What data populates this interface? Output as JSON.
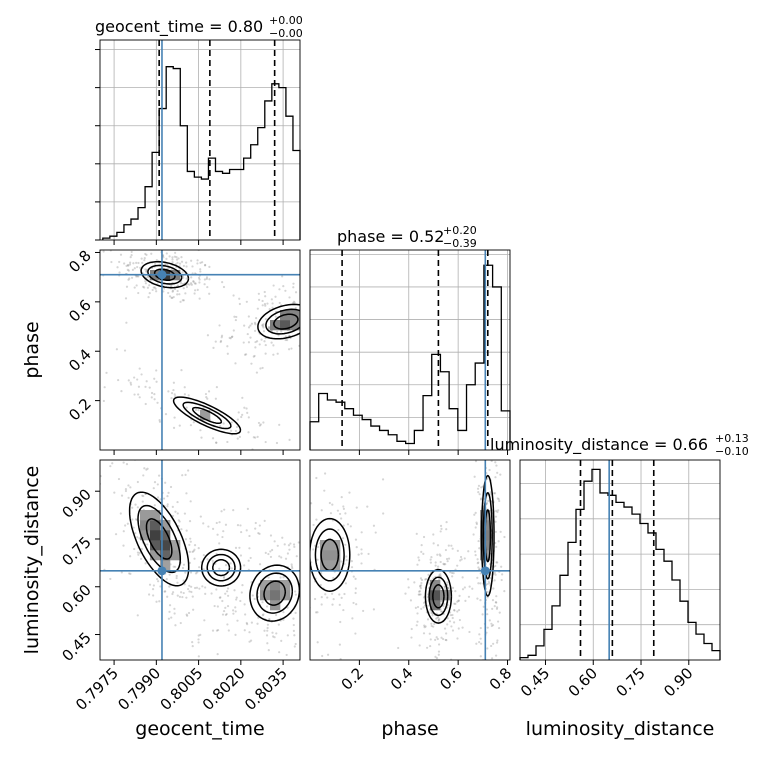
{
  "chart_data": {
    "type": "scatter",
    "subtype": "corner-plot",
    "parameters": [
      "geocent_time",
      "phase",
      "luminosity_distance"
    ],
    "ranges": {
      "geocent_time": [
        0.797,
        0.8041
      ],
      "phase": [
        0.0,
        0.81
      ],
      "luminosity_distance": [
        0.37,
        0.998
      ]
    },
    "truths": {
      "geocent_time": 0.7992,
      "phase": 0.71,
      "luminosity_distance": 0.65
    },
    "titles": [
      {
        "param": "geocent_time",
        "text": "geocent_time = 0.80",
        "sup": "+0.00",
        "sub": "−0.00"
      },
      {
        "param": "phase",
        "text": "phase = 0.52",
        "sup": "+0.20",
        "sub": "−0.39"
      },
      {
        "param": "luminosity_distance",
        "text": "luminosity_distance = 0.66",
        "sup": "+0.13",
        "sub": "−0.10"
      }
    ],
    "quantiles": {
      "geocent_time": [
        0.7991,
        0.8009,
        0.8032
      ],
      "phase": [
        0.13,
        0.52,
        0.72
      ],
      "luminosity_distance": [
        0.56,
        0.66,
        0.79
      ]
    },
    "ticks": {
      "geocent_time": [
        "0.7975",
        "0.7990",
        "0.8005",
        "0.8020",
        "0.8035"
      ],
      "phase": [
        "0.2",
        "0.4",
        "0.6",
        "0.8"
      ],
      "luminosity_distance": [
        "0.45",
        "0.60",
        "0.75",
        "0.90"
      ]
    },
    "axis_labels": {
      "x": [
        "geocent_time",
        "phase",
        "luminosity_distance"
      ],
      "y": [
        "phase",
        "luminosity_distance"
      ]
    },
    "histograms": {
      "geocent_time": [
        0.01,
        0.02,
        0.04,
        0.08,
        0.11,
        0.17,
        0.28,
        0.46,
        0.69,
        0.91,
        0.9,
        0.6,
        0.36,
        0.33,
        0.32,
        0.43,
        0.36,
        0.35,
        0.37,
        0.37,
        0.43,
        0.5,
        0.59,
        0.73,
        0.82,
        0.8,
        0.65,
        0.47
      ],
      "phase": [
        0.13,
        0.26,
        0.23,
        0.22,
        0.19,
        0.16,
        0.14,
        0.11,
        0.09,
        0.07,
        0.04,
        0.03,
        0.09,
        0.25,
        0.44,
        0.36,
        0.19,
        0.09,
        0.3,
        0.4,
        0.85,
        0.75,
        0.18
      ],
      "luminosity_distance": [
        0.01,
        0.02,
        0.06,
        0.13,
        0.23,
        0.36,
        0.5,
        0.64,
        0.76,
        0.81,
        0.71,
        0.7,
        0.67,
        0.65,
        0.62,
        0.58,
        0.54,
        0.47,
        0.42,
        0.34,
        0.25,
        0.16,
        0.11,
        0.07,
        0.04
      ]
    },
    "histogram_bin_edges": {
      "geocent_time": [
        0.7971,
        0.8041
      ],
      "phase": [
        0.0,
        0.81
      ],
      "luminosity_distance": [
        0.37,
        0.998
      ]
    },
    "hist_ylim": {
      "geocent_time": [
        0,
        1.05
      ],
      "phase": [
        0,
        0.92
      ],
      "luminosity_distance": [
        0,
        0.85
      ]
    },
    "hist_yticks": {
      "geocent_time": [
        0,
        0.2,
        0.4,
        0.6,
        0.8,
        1.0
      ],
      "phase": [
        0,
        0.15,
        0.3,
        0.45,
        0.6,
        0.75,
        0.9
      ],
      "luminosity_distance": [
        0,
        0.15,
        0.3,
        0.45,
        0.6,
        0.75
      ]
    },
    "modes_2d": {
      "geocent_time_vs_phase": [
        {
          "x": 0.7993,
          "y": 0.71,
          "sx": 0.0004,
          "sy": 0.025,
          "rho": -0.3,
          "w": 1.0
        },
        {
          "x": 0.8036,
          "y": 0.52,
          "sx": 0.0005,
          "sy": 0.035,
          "rho": 0.3,
          "w": 0.9
        },
        {
          "x": 0.8008,
          "y": 0.14,
          "sx": 0.0008,
          "sy": 0.05,
          "rho": -0.8,
          "w": 0.5
        }
      ],
      "geocent_time_vs_luminosity_distance": [
        {
          "x": 0.7991,
          "y": 0.75,
          "sx": 0.0005,
          "sy": 0.07,
          "rho": -0.6,
          "w": 1.0
        },
        {
          "x": 0.8032,
          "y": 0.58,
          "sx": 0.0005,
          "sy": 0.05,
          "rho": 0.1,
          "w": 0.7
        },
        {
          "x": 0.8013,
          "y": 0.66,
          "sx": 0.0006,
          "sy": 0.05,
          "rho": 0.0,
          "w": 0.3
        }
      ],
      "phase_vs_luminosity_distance": [
        {
          "x": 0.08,
          "y": 0.7,
          "sx": 0.05,
          "sy": 0.07,
          "rho": 0.0,
          "w": 0.6
        },
        {
          "x": 0.52,
          "y": 0.57,
          "sx": 0.025,
          "sy": 0.04,
          "rho": 0.0,
          "w": 1.0
        },
        {
          "x": 0.72,
          "y": 0.76,
          "sx": 0.012,
          "sy": 0.09,
          "rho": 0.0,
          "w": 1.0
        }
      ]
    }
  }
}
